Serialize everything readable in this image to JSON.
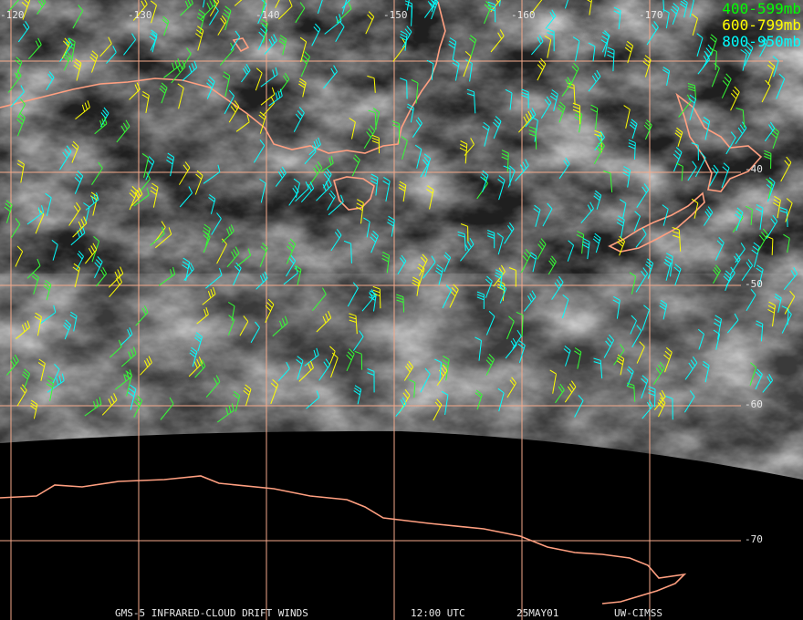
{
  "map": {
    "longitude_labels": [
      "-120",
      "-130",
      "-140",
      "-150",
      "-160",
      "-170"
    ],
    "latitude_labels": [
      "-40",
      "-50",
      "-60",
      "-70"
    ],
    "legend": [
      "400-599mb",
      "600-799mb",
      "800-950mb"
    ],
    "footer": {
      "product": "GMS-5 INFRARED-CLOUD DRIFT WINDS",
      "time": "12:00 UTC",
      "date": "25MAY01",
      "source": "UW-CIMSS"
    }
  }
}
